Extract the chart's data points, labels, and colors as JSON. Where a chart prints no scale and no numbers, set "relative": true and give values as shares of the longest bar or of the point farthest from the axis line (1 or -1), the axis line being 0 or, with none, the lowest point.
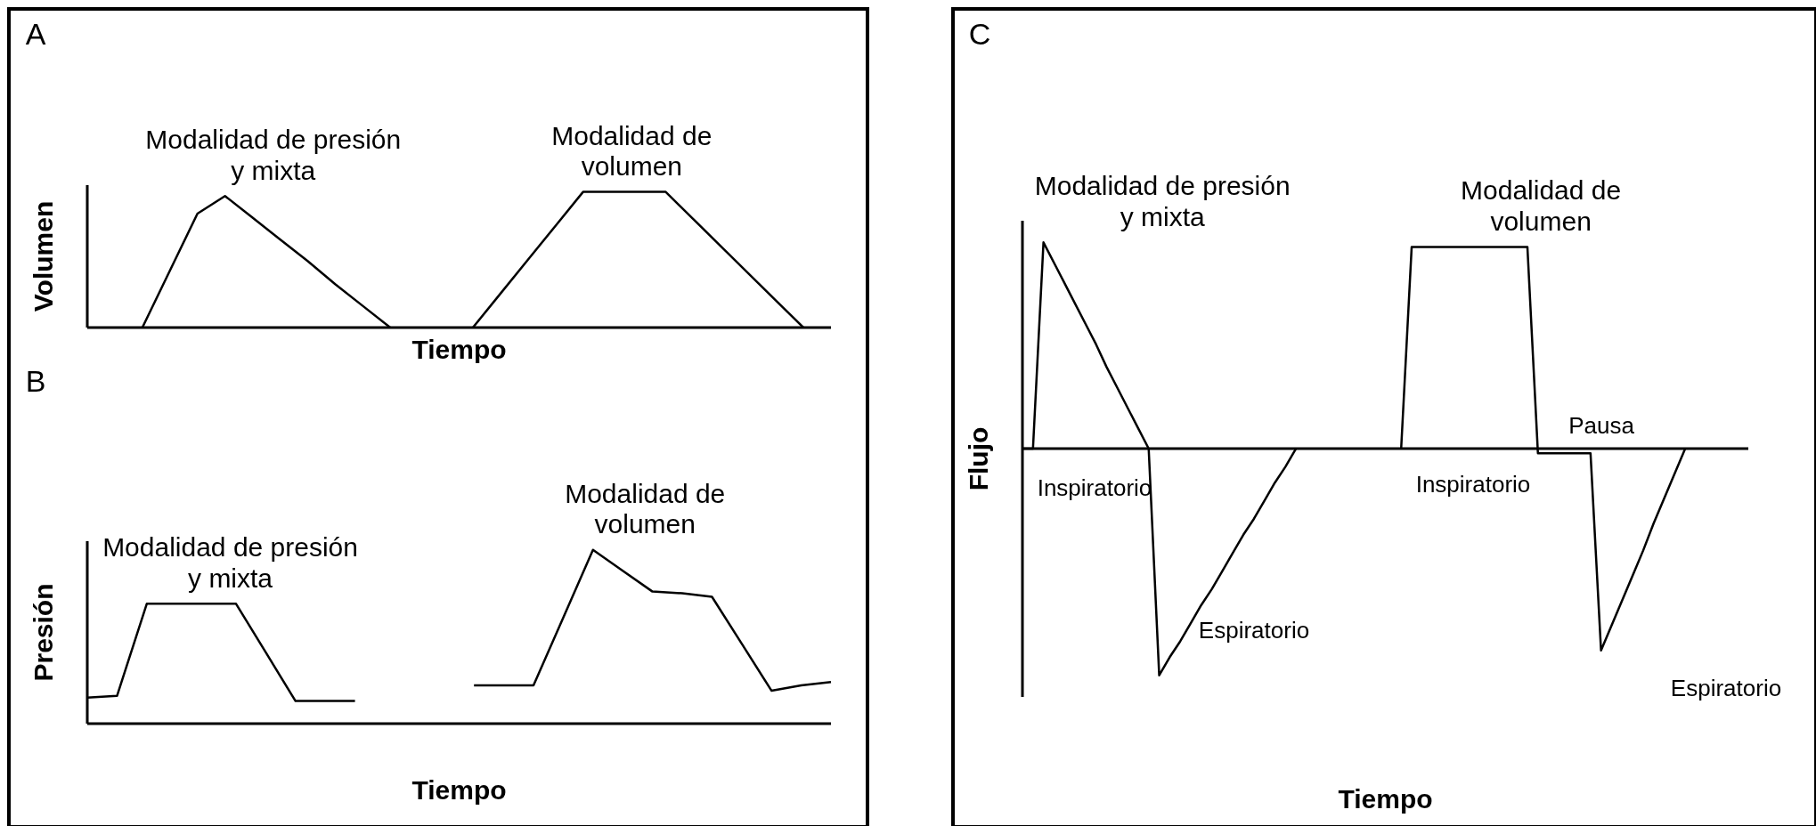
{
  "chart_data": [
    {
      "type": "line",
      "relative": true,
      "annotations": [
        "A"
      ],
      "xlabel": "Tiempo",
      "ylabel": "Volumen",
      "marker": "none",
      "line_style": "solid",
      "categories": [
        null,
        null,
        null,
        null,
        null,
        null,
        null,
        null,
        null,
        null,
        null,
        null,
        null,
        null,
        null,
        null,
        null,
        null,
        null,
        null,
        null,
        null,
        null,
        null,
        null,
        null,
        null,
        null
      ],
      "series": [
        {
          "name": "Modalidad de presión y mixta",
          "color": "#000000",
          "values": [
            null,
            null,
            0,
            0.42,
            0.84,
            0.97,
            0.81,
            0.65,
            0.49,
            0.32,
            0.16,
            0,
            null,
            null,
            null,
            null,
            null,
            null,
            null,
            null,
            null,
            null,
            null,
            null,
            null,
            null,
            null,
            null
          ]
        },
        {
          "name": "Modalidad de volumen",
          "color": "#000000",
          "values": [
            null,
            null,
            null,
            null,
            null,
            null,
            null,
            null,
            null,
            null,
            null,
            null,
            null,
            null,
            0,
            0.25,
            0.5,
            0.75,
            1,
            1,
            1,
            1,
            0.8,
            0.6,
            0.4,
            0.2,
            0,
            null
          ]
        }
      ]
    },
    {
      "type": "line",
      "relative": true,
      "annotations": [
        "B"
      ],
      "xlabel": "Tiempo",
      "ylabel": "Presión",
      "marker": "none",
      "line_style": "solid",
      "categories": [
        null,
        null,
        null,
        null,
        null,
        null,
        null,
        null,
        null,
        null,
        null,
        null,
        null,
        null,
        null,
        null,
        null,
        null,
        null,
        null,
        null,
        null,
        null,
        null,
        null,
        null
      ],
      "series": [
        {
          "name": "Modalidad de presión y mixta",
          "color": "#000000",
          "values": [
            0.15,
            0.16,
            0.69,
            0.69,
            0.69,
            0.69,
            0.41,
            0.13,
            0.13,
            0.13,
            null,
            null,
            null,
            null,
            null,
            null,
            null,
            null,
            null,
            null,
            null,
            null,
            null,
            null,
            null,
            null
          ]
        },
        {
          "name": "Modalidad de volumen",
          "color": "#000000",
          "values": [
            null,
            null,
            null,
            null,
            null,
            null,
            null,
            null,
            null,
            null,
            null,
            null,
            null,
            0.22,
            0.22,
            0.22,
            0.61,
            1,
            0.88,
            0.76,
            0.75,
            0.73,
            0.46,
            0.19,
            0.22,
            0.24
          ]
        }
      ]
    },
    {
      "type": "line",
      "relative": true,
      "annotations": [
        "C",
        "Inspiratorio",
        "Espiratorio",
        "Inspiratorio",
        "Pausa",
        "Espiratorio"
      ],
      "xlabel": "Tiempo",
      "ylabel": "Flujo",
      "marker": "none",
      "line_style": "solid",
      "categories": [
        null,
        null,
        null,
        null,
        null,
        null,
        null,
        null,
        null,
        null,
        null,
        null,
        null,
        null,
        null,
        null,
        null,
        null,
        null,
        null,
        null,
        null,
        null,
        null,
        null,
        null,
        null,
        null,
        null,
        null,
        null,
        null,
        null,
        null,
        null,
        null,
        null,
        null,
        null,
        null,
        null,
        null,
        null,
        null,
        null,
        null,
        null,
        null,
        null,
        null,
        null,
        null,
        null,
        null,
        null,
        null,
        null,
        null,
        null,
        null,
        null,
        null,
        null,
        null,
        null,
        null,
        null,
        null,
        null,
        null
      ],
      "series": [
        {
          "name": "Modalidad de presión y mixta",
          "color": "#000000",
          "values": [
            0,
            0,
            0.91,
            0.82,
            0.73,
            0.64,
            0.55,
            0.46,
            0.36,
            0.27,
            0.18,
            0.09,
            0,
            -1,
            -0.92,
            -0.85,
            -0.77,
            -0.69,
            -0.62,
            -0.54,
            -0.46,
            -0.38,
            -0.31,
            -0.23,
            -0.15,
            -0.08,
            0,
            null,
            null,
            null,
            null,
            null,
            null,
            null,
            null,
            null,
            null,
            null,
            null,
            null,
            null,
            null,
            null,
            null,
            null,
            null,
            null,
            null,
            null,
            null,
            null,
            null,
            null,
            null,
            null,
            null,
            null,
            null,
            null,
            null,
            null,
            null,
            null,
            null,
            null,
            null,
            null,
            null,
            null,
            null
          ]
        },
        {
          "name": "Modalidad de volumen",
          "color": "#000000",
          "values": [
            null,
            null,
            null,
            null,
            null,
            null,
            null,
            null,
            null,
            null,
            null,
            null,
            null,
            null,
            null,
            null,
            null,
            null,
            null,
            null,
            null,
            null,
            null,
            null,
            null,
            null,
            null,
            null,
            null,
            null,
            null,
            null,
            null,
            null,
            null,
            null,
            0,
            0.89,
            0.89,
            0.89,
            0.89,
            0.89,
            0.89,
            0.89,
            0.89,
            0.89,
            0.89,
            0.89,
            0.89,
            -0.02,
            -0.02,
            -0.02,
            -0.02,
            -0.02,
            -0.02,
            -0.89,
            -0.78,
            -0.67,
            -0.56,
            -0.45,
            -0.33,
            -0.22,
            -0.11,
            0,
            null,
            null,
            null,
            null,
            null,
            null
          ]
        }
      ]
    }
  ]
}
